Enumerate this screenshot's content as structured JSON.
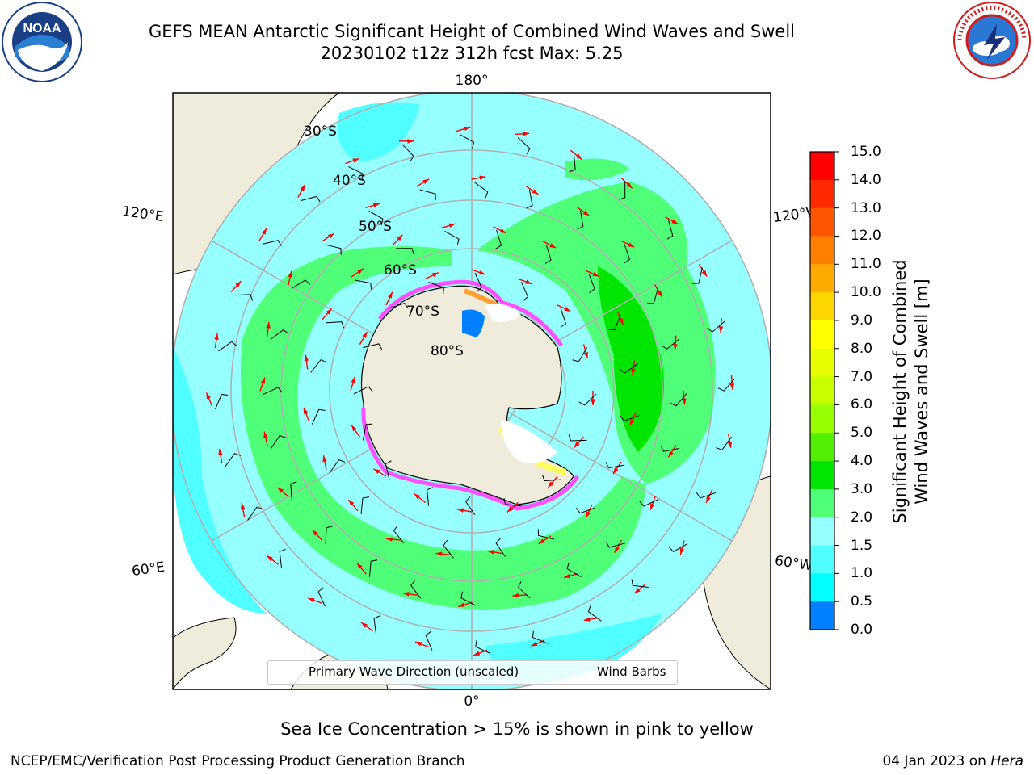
{
  "header": {
    "title_line1": "GEFS MEAN Antarctic Significant Height of Combined Wind Waves and Swell",
    "title_line2": "20230102 t12z 312h fcst   Max: 5.25"
  },
  "logos": {
    "left": {
      "text": "NOAA",
      "ring_text": "NATIONAL OCEANIC AND ATMOSPHERIC ADMINISTRATION · U.S. DEPARTMENT OF COMMERCE"
    },
    "right": {
      "ring_text": "NATIONAL WEATHER SERVICE"
    }
  },
  "map": {
    "latitude_labels": [
      "30°S",
      "40°S",
      "50°S",
      "60°S",
      "70°S",
      "80°S"
    ],
    "longitude_labels": {
      "top": "180°",
      "bottom": "0°",
      "left_upper": "120°E",
      "left_lower": "60°E",
      "right_upper": "120°W",
      "right_lower": "60°W"
    },
    "colors": {
      "land": "#efecdc",
      "ocean_default": "#96ffff",
      "ocean_1_5_2": "#50ffff",
      "ocean_3_4": "#50ff78",
      "ocean_4_5": "#00e600",
      "ice_pink": "#ff50ff",
      "wave_arrow": "#ff0000",
      "wind_barb": "#000000"
    }
  },
  "legend": {
    "wave_direction": "Primary Wave Direction (unscaled)",
    "wind_barbs": "Wind Barbs"
  },
  "colorbar": {
    "title_line1": "Significant Height of Combined",
    "title_line2": "Wind Waves and Swell [m]",
    "ticks": [
      "15.0",
      "14.0",
      "13.0",
      "12.0",
      "11.0",
      "10.0",
      "9.0",
      "8.0",
      "7.0",
      "6.0",
      "5.0",
      "4.0",
      "3.0",
      "2.0",
      "1.5",
      "1.0",
      "0.5",
      "0.0"
    ],
    "colors": [
      "#ff0000",
      "#ff2a00",
      "#ff5500",
      "#ff8000",
      "#ffaa00",
      "#ffd500",
      "#ffff00",
      "#e6ff00",
      "#c8ff00",
      "#96ff00",
      "#50f000",
      "#00e600",
      "#50ff78",
      "#96ffff",
      "#50ffff",
      "#00ffff",
      "#0080ff",
      "#0000ff"
    ]
  },
  "note": "Sea Ice Concentration > 15% is shown in pink to yellow",
  "footer": {
    "left": "NCEP/EMC/Verification Post Processing Product Generation Branch",
    "right_date": "04 Jan 2023 on ",
    "right_machine": "Hera"
  }
}
